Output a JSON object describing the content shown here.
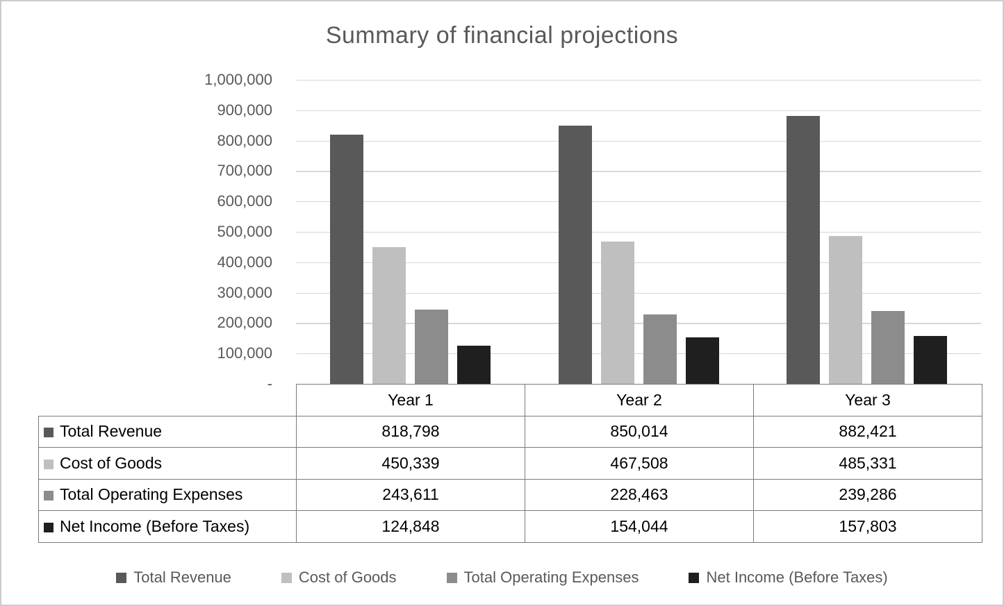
{
  "title": "Summary of financial projections",
  "chart_data": {
    "type": "bar",
    "title": "Summary of financial projections",
    "categories": [
      "Year 1",
      "Year 2",
      "Year 3"
    ],
    "series": [
      {
        "name": "Total Revenue",
        "color": "#595959",
        "values": [
          818798,
          850014,
          882421
        ],
        "values_formatted": [
          "818,798",
          "850,014",
          "882,421"
        ]
      },
      {
        "name": "Cost of Goods",
        "color": "#BFBFBF",
        "values": [
          450339,
          467508,
          485331
        ],
        "values_formatted": [
          "450,339",
          "467,508",
          "485,331"
        ]
      },
      {
        "name": "Total Operating Expenses",
        "color": "#8C8C8C",
        "values": [
          243611,
          228463,
          239286
        ],
        "values_formatted": [
          "243,611",
          "228,463",
          "239,286"
        ]
      },
      {
        "name": "Net Income (Before Taxes)",
        "color": "#1F1F1F",
        "values": [
          124848,
          154044,
          157803
        ],
        "values_formatted": [
          "124,848",
          "154,044",
          "157,803"
        ]
      }
    ],
    "xlabel": "",
    "ylabel": "",
    "ylim": [
      0,
      1000000
    ],
    "y_tick_step": 100000,
    "y_tick_labels": [
      "1,000,000",
      "900,000",
      "800,000",
      "700,000",
      "600,000",
      "500,000",
      "400,000",
      "300,000",
      "200,000",
      "100,000",
      "-"
    ],
    "grid": true,
    "legend_position": "bottom",
    "has_data_table": true,
    "colors": {
      "title_text": "#595959",
      "axis_text": "#595959",
      "legend_text": "#595959",
      "gridline": "#D7D7D7",
      "table_border": "#7A7A7A",
      "table_text": "#000000",
      "background": "#FFFFFF"
    }
  }
}
